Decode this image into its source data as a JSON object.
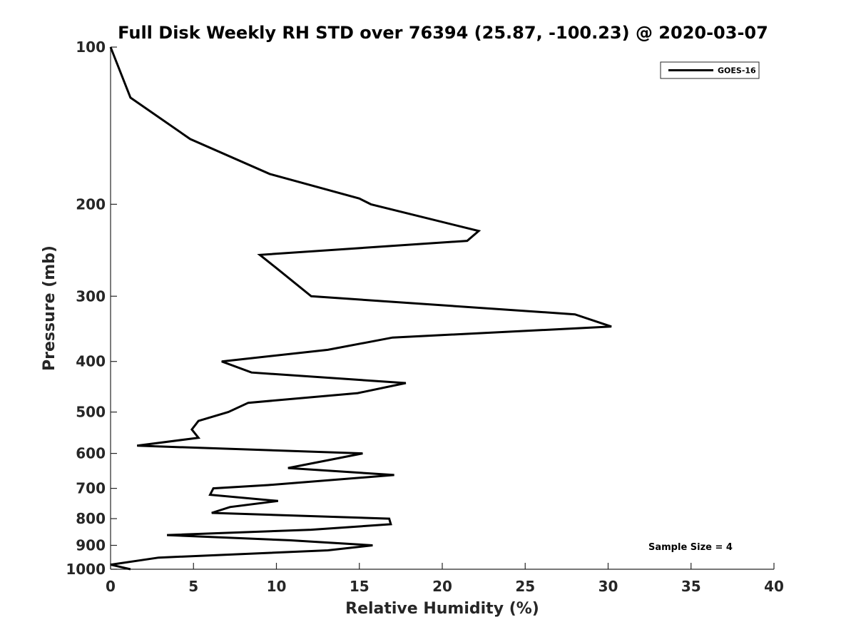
{
  "chart_data": {
    "type": "line",
    "title": "Full Disk Weekly RH STD over 76394 (25.87, -100.23) @ 2020-03-07",
    "xlabel": "Relative Humidity (%)",
    "ylabel": "Pressure (mb)",
    "xlim": [
      0,
      40
    ],
    "ylim": [
      100,
      1000
    ],
    "y_scale": "log",
    "y_inverted": true,
    "grid": false,
    "legend_position": "top-right",
    "x_ticks": [
      "0",
      "5",
      "10",
      "15",
      "20",
      "25",
      "30",
      "35",
      "40"
    ],
    "y_ticks": [
      "100",
      "200",
      "300",
      "400",
      "500",
      "600",
      "700",
      "800",
      "900",
      "1000"
    ],
    "note": "Sample Size = 4",
    "series": [
      {
        "name": "GOES-16",
        "color": "#000000",
        "points": [
          [
            0.0,
            100
          ],
          [
            1.2,
            125
          ],
          [
            4.8,
            150
          ],
          [
            9.6,
            175
          ],
          [
            15.0,
            195
          ],
          [
            15.7,
            200
          ],
          [
            22.2,
            225
          ],
          [
            21.5,
            235
          ],
          [
            9.0,
            250
          ],
          [
            10.0,
            265
          ],
          [
            12.1,
            300
          ],
          [
            28.0,
            325
          ],
          [
            30.2,
            343
          ],
          [
            17.0,
            360
          ],
          [
            13.1,
            380
          ],
          [
            6.7,
            400
          ],
          [
            8.5,
            420
          ],
          [
            17.8,
            440
          ],
          [
            14.9,
            460
          ],
          [
            8.3,
            480
          ],
          [
            7.1,
            500
          ],
          [
            5.3,
            520
          ],
          [
            4.9,
            540
          ],
          [
            5.3,
            560
          ],
          [
            1.6,
            580
          ],
          [
            15.2,
            600
          ],
          [
            10.7,
            640
          ],
          [
            17.1,
            660
          ],
          [
            9.5,
            690
          ],
          [
            6.2,
            700
          ],
          [
            6.0,
            720
          ],
          [
            10.1,
            740
          ],
          [
            7.2,
            760
          ],
          [
            6.1,
            780
          ],
          [
            16.8,
            800
          ],
          [
            16.9,
            820
          ],
          [
            12.1,
            840
          ],
          [
            3.4,
            860
          ],
          [
            10.8,
            880
          ],
          [
            15.8,
            900
          ],
          [
            13.1,
            920
          ],
          [
            2.9,
            950
          ],
          [
            0.0,
            980
          ],
          [
            1.2,
            1000
          ]
        ]
      }
    ]
  }
}
